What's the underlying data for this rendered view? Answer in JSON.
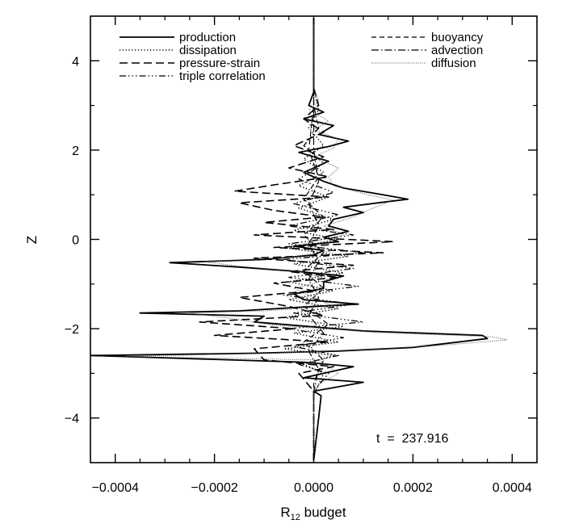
{
  "chart_data": {
    "type": "line",
    "title": "",
    "xlabel": "R",
    "xlabel_subscript": "12",
    "xlabel_suffix": " budget",
    "ylabel": "Z",
    "xlim": [
      -0.00045,
      0.00045
    ],
    "ylim": [
      -5,
      5
    ],
    "x_ticks": [
      -0.0004,
      -0.0002,
      0.0,
      0.0002,
      0.0004
    ],
    "x_tick_labels": [
      "−0.0004",
      "−0.0002",
      "0.0000",
      "0.0002",
      "0.0004"
    ],
    "y_ticks": [
      -4,
      -2,
      0,
      2,
      4
    ],
    "y_tick_labels": [
      "−4",
      "−2",
      "0",
      "2",
      "4"
    ],
    "grid": false,
    "legend_position": "top",
    "annotation": "t  =  237.916",
    "series": [
      {
        "name": "production",
        "dash": "solid",
        "width": 1.8,
        "color": "#000000",
        "points": [
          [
            0.0,
            -4.95
          ],
          [
            1e-05,
            -4.0
          ],
          [
            1.5e-05,
            -3.5
          ],
          [
            0.0,
            -3.4
          ],
          [
            0.0001,
            -3.2
          ],
          [
            -2e-05,
            -3.1
          ],
          [
            4e-05,
            -2.95
          ],
          [
            8e-05,
            -2.85
          ],
          [
            -2e-05,
            -2.75
          ],
          [
            -0.00045,
            -2.6
          ],
          [
            -0.00012,
            -2.55
          ],
          [
            5e-05,
            -2.5
          ],
          [
            0.0002,
            -2.42
          ],
          [
            0.00035,
            -2.22
          ],
          [
            0.00034,
            -2.15
          ],
          [
            0.0001,
            -2.05
          ],
          [
            -0.00012,
            -1.85
          ],
          [
            -0.0001,
            -1.72
          ],
          [
            -0.00035,
            -1.65
          ],
          [
            -0.00015,
            -1.6
          ],
          [
            0.0,
            -1.5
          ],
          [
            9e-05,
            -1.45
          ],
          [
            -2e-05,
            -1.35
          ],
          [
            -4e-05,
            -1.22
          ],
          [
            2e-05,
            -1.1
          ],
          [
            2e-05,
            -0.95
          ],
          [
            6e-05,
            -0.82
          ],
          [
            -3e-05,
            -0.72
          ],
          [
            -0.00015,
            -0.62
          ],
          [
            -0.00029,
            -0.52
          ],
          [
            -0.0001,
            -0.45
          ],
          [
            0.0,
            -0.35
          ],
          [
            2e-05,
            -0.25
          ],
          [
            -4e-05,
            -0.15
          ],
          [
            5e-05,
            -0.05
          ],
          [
            2e-05,
            0.05
          ],
          [
            7e-05,
            0.18
          ],
          [
            3e-05,
            0.3
          ],
          [
            4e-05,
            0.45
          ],
          [
            0.0001,
            0.6
          ],
          [
            6e-05,
            0.72
          ],
          [
            0.00013,
            0.82
          ],
          [
            0.00019,
            0.9
          ],
          [
            0.00014,
            1.0
          ],
          [
            6e-05,
            1.15
          ],
          [
            2e-05,
            1.3
          ],
          [
            -2e-05,
            1.5
          ],
          [
            3e-05,
            1.75
          ],
          [
            -3e-05,
            1.95
          ],
          [
            3e-05,
            2.08
          ],
          [
            7e-05,
            2.2
          ],
          [
            1e-05,
            2.35
          ],
          [
            4e-05,
            2.55
          ],
          [
            -2e-05,
            2.7
          ],
          [
            2e-05,
            2.85
          ],
          [
            -1e-05,
            3.0
          ],
          [
            0.0,
            3.3
          ],
          [
            0.0,
            4.95
          ]
        ]
      },
      {
        "name": "dissipation",
        "dash": "1.2,2.6",
        "width": 1.6,
        "color": "#000000",
        "points": [
          [
            0.0,
            -4.95
          ],
          [
            0.0,
            -3.5
          ],
          [
            2e-05,
            -3.0
          ],
          [
            -2e-05,
            -2.8
          ],
          [
            4e-05,
            -2.6
          ],
          [
            -6e-05,
            -2.45
          ],
          [
            5e-05,
            -2.3
          ],
          [
            -4e-05,
            -2.1
          ],
          [
            6e-05,
            -1.95
          ],
          [
            -6e-05,
            -1.75
          ],
          [
            5e-05,
            -1.55
          ],
          [
            -5e-05,
            -1.35
          ],
          [
            4e-05,
            -1.15
          ],
          [
            -5e-05,
            -0.95
          ],
          [
            6e-05,
            -0.75
          ],
          [
            -4e-05,
            -0.55
          ],
          [
            7e-05,
            -0.38
          ],
          [
            -5e-05,
            -0.2
          ],
          [
            5e-05,
            0.0
          ],
          [
            -4e-05,
            0.2
          ],
          [
            4e-05,
            0.45
          ],
          [
            -3e-05,
            0.7
          ],
          [
            3e-05,
            0.95
          ],
          [
            -3e-05,
            1.2
          ],
          [
            2e-05,
            1.5
          ],
          [
            -2e-05,
            1.8
          ],
          [
            2e-05,
            2.1
          ],
          [
            -1e-05,
            2.5
          ],
          [
            1e-05,
            2.9
          ],
          [
            0.0,
            3.4
          ],
          [
            0.0,
            4.95
          ]
        ]
      },
      {
        "name": "pressure-strain",
        "dash": "10,5",
        "width": 1.6,
        "color": "#000000",
        "points": [
          [
            0.0,
            -4.95
          ],
          [
            0.0,
            -3.4
          ],
          [
            -3e-05,
            -3.0
          ],
          [
            4e-05,
            -2.85
          ],
          [
            -0.0001,
            -2.7
          ],
          [
            -0.00012,
            -2.45
          ],
          [
            3e-05,
            -2.3
          ],
          [
            -0.0002,
            -2.15
          ],
          [
            -4e-05,
            -2.0
          ],
          [
            -0.00023,
            -1.85
          ],
          [
            2e-05,
            -1.7
          ],
          [
            -5e-05,
            -1.5
          ],
          [
            -0.00015,
            -1.3
          ],
          [
            0.0,
            -1.15
          ],
          [
            -8e-05,
            -0.98
          ],
          [
            5e-05,
            -0.85
          ],
          [
            -5e-05,
            -0.72
          ],
          [
            8e-05,
            -0.58
          ],
          [
            -0.00012,
            -0.42
          ],
          [
            0.00014,
            -0.3
          ],
          [
            -8e-05,
            -0.18
          ],
          [
            0.00016,
            -0.05
          ],
          [
            -0.00012,
            0.1
          ],
          [
            4e-05,
            0.22
          ],
          [
            -0.0001,
            0.38
          ],
          [
            2e-05,
            0.5
          ],
          [
            -8e-05,
            0.65
          ],
          [
            -0.00015,
            0.82
          ],
          [
            3e-05,
            0.95
          ],
          [
            -0.00016,
            1.08
          ],
          [
            -8e-05,
            1.22
          ],
          [
            3e-05,
            1.4
          ],
          [
            -5e-05,
            1.6
          ],
          [
            2e-05,
            1.85
          ],
          [
            -4e-05,
            2.1
          ],
          [
            2e-05,
            2.4
          ],
          [
            -2e-05,
            2.7
          ],
          [
            1e-05,
            3.0
          ],
          [
            0.0,
            3.4
          ],
          [
            0.0,
            4.95
          ]
        ]
      },
      {
        "name": "triple correlation",
        "dash": "8,3,1.5,3,1.5,3,1.5,3",
        "width": 1.3,
        "color": "#000000",
        "points": [
          [
            0.0,
            -4.95
          ],
          [
            0.0,
            -3.4
          ],
          [
            3e-05,
            -3.0
          ],
          [
            -3e-05,
            -2.8
          ],
          [
            5e-05,
            -2.6
          ],
          [
            -4e-05,
            -2.4
          ],
          [
            6e-05,
            -2.2
          ],
          [
            -5e-05,
            -2.0
          ],
          [
            0.0001,
            -1.85
          ],
          [
            -4e-05,
            -1.65
          ],
          [
            8e-05,
            -1.45
          ],
          [
            -6e-05,
            -1.25
          ],
          [
            9e-05,
            -1.05
          ],
          [
            -5e-05,
            -0.85
          ],
          [
            8e-05,
            -0.65
          ],
          [
            -6e-05,
            -0.45
          ],
          [
            0.0001,
            -0.3
          ],
          [
            -5e-05,
            -0.1
          ],
          [
            8e-05,
            0.1
          ],
          [
            -5e-05,
            0.3
          ],
          [
            5e-05,
            0.55
          ],
          [
            -4e-05,
            0.8
          ],
          [
            4e-05,
            1.05
          ],
          [
            -3e-05,
            1.35
          ],
          [
            2e-05,
            1.7
          ],
          [
            -2e-05,
            2.1
          ],
          [
            1e-05,
            2.5
          ],
          [
            0.0,
            3.0
          ],
          [
            0.0,
            4.95
          ]
        ]
      },
      {
        "name": "buoyancy",
        "dash": "6,4",
        "width": 1.2,
        "color": "#000000",
        "points": [
          [
            0.0,
            -4.95
          ],
          [
            0.0,
            -3.2
          ],
          [
            2e-05,
            -2.7
          ],
          [
            -2e-05,
            -2.3
          ],
          [
            3e-05,
            -1.9
          ],
          [
            -2e-05,
            -1.5
          ],
          [
            2e-05,
            -1.1
          ],
          [
            -2e-05,
            -0.7
          ],
          [
            2e-05,
            -0.3
          ],
          [
            -2e-05,
            0.1
          ],
          [
            2e-05,
            0.5
          ],
          [
            -2e-05,
            0.9
          ],
          [
            1e-05,
            1.4
          ],
          [
            -1e-05,
            2.0
          ],
          [
            0.0,
            3.0
          ],
          [
            0.0,
            4.95
          ]
        ]
      },
      {
        "name": "advection",
        "dash": "9,3,1.5,3",
        "width": 1.2,
        "color": "#000000",
        "points": [
          [
            0.0,
            -4.95
          ],
          [
            0.0,
            -3.4
          ],
          [
            1e-05,
            -2.9
          ],
          [
            -1e-05,
            -2.5
          ],
          [
            2e-05,
            -2.1
          ],
          [
            -1e-05,
            -1.7
          ],
          [
            1e-05,
            -1.3
          ],
          [
            -1e-05,
            -0.9
          ],
          [
            1e-05,
            -0.5
          ],
          [
            -1e-05,
            -0.1
          ],
          [
            1e-05,
            0.3
          ],
          [
            -1e-05,
            0.8
          ],
          [
            1e-05,
            1.3
          ],
          [
            0.0,
            2.0
          ],
          [
            0.0,
            4.95
          ]
        ]
      },
      {
        "name": "diffusion",
        "dash": "1,1.5",
        "width": 1.0,
        "color": "#555555",
        "points": [
          [
            0.0,
            -4.95
          ],
          [
            0.0,
            -3.3
          ],
          [
            5e-05,
            -3.0
          ],
          [
            3e-05,
            -2.85
          ],
          [
            1e-05,
            -2.7
          ],
          [
            -0.00038,
            -2.62
          ],
          [
            -8e-05,
            -2.55
          ],
          [
            8e-05,
            -2.48
          ],
          [
            0.00025,
            -2.38
          ],
          [
            0.00039,
            -2.25
          ],
          [
            0.00036,
            -2.18
          ],
          [
            0.00012,
            -2.08
          ],
          [
            -8e-05,
            -1.92
          ],
          [
            -0.00018,
            -1.75
          ],
          [
            -0.00025,
            -1.65
          ],
          [
            -0.0001,
            -1.6
          ],
          [
            4e-05,
            -1.5
          ],
          [
            0.0,
            -1.3
          ],
          [
            -4e-05,
            -1.1
          ],
          [
            3e-05,
            -0.9
          ],
          [
            -3e-05,
            -0.72
          ],
          [
            -0.00015,
            -0.6
          ],
          [
            -0.00022,
            -0.5
          ],
          [
            -5e-05,
            -0.4
          ],
          [
            4e-05,
            -0.25
          ],
          [
            -2e-05,
            -0.1
          ],
          [
            6e-05,
            0.1
          ],
          [
            2e-05,
            0.3
          ],
          [
            8e-05,
            0.5
          ],
          [
            0.00012,
            0.7
          ],
          [
            0.00016,
            0.88
          ],
          [
            0.00011,
            1.0
          ],
          [
            4e-05,
            1.2
          ],
          [
            3e-05,
            1.4
          ],
          [
            5e-05,
            1.6
          ],
          [
            0.0,
            1.85
          ],
          [
            4e-05,
            2.05
          ],
          [
            5e-05,
            2.25
          ],
          [
            0.0,
            2.45
          ],
          [
            3e-05,
            2.65
          ],
          [
            -1e-05,
            2.9
          ],
          [
            1e-05,
            3.1
          ],
          [
            0.0,
            3.4
          ],
          [
            0.0,
            4.95
          ]
        ]
      }
    ]
  }
}
